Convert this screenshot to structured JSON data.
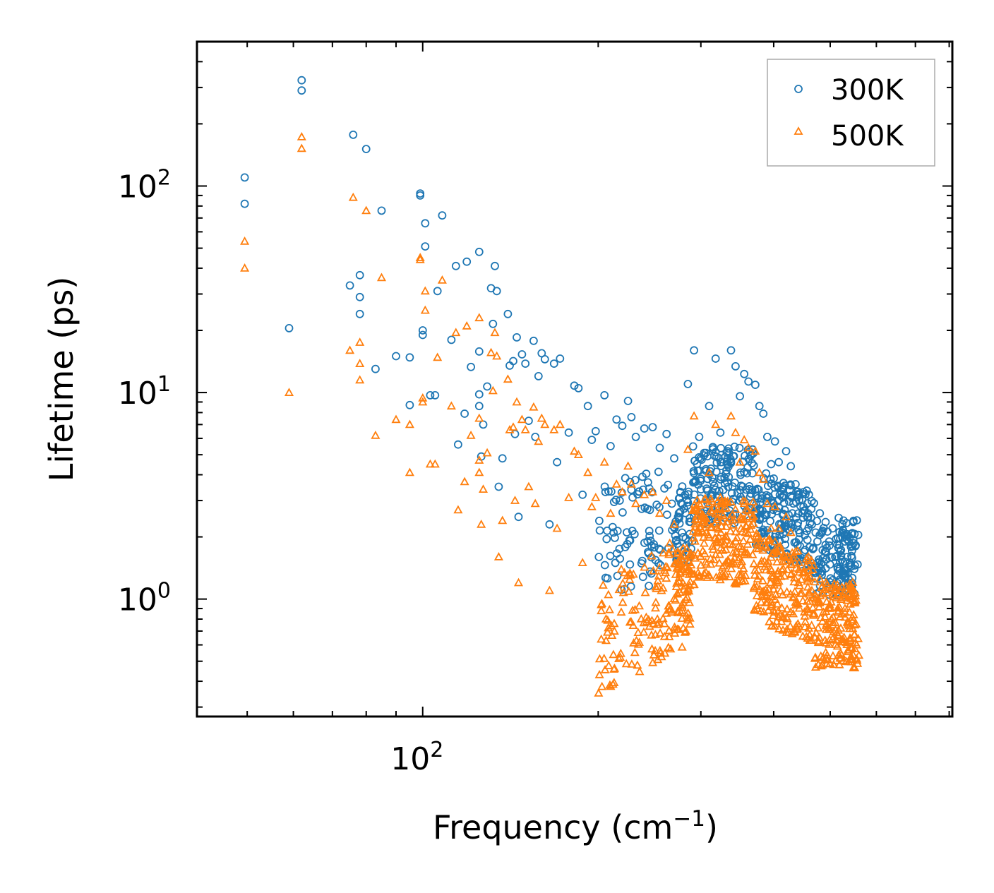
{
  "chart_data": {
    "type": "scatter",
    "title": "",
    "xlabel": "Frequency (cm",
    "xlabel_sup": "−1",
    "xlabel_suffix": ")",
    "ylabel": "Lifetime (ps)",
    "xscale": "log",
    "yscale": "log",
    "xlim": [
      41,
      810
    ],
    "ylim": [
      0.27,
      500
    ],
    "x_ticks": [
      {
        "value": 100,
        "base": "10",
        "exp": "2"
      }
    ],
    "y_ticks": [
      {
        "value": 1,
        "base": "10",
        "exp": "0"
      },
      {
        "value": 10,
        "base": "10",
        "exp": "1"
      },
      {
        "value": 100,
        "base": "10",
        "exp": "2"
      }
    ],
    "legend_position": "top-right",
    "series": [
      {
        "name": "300K",
        "marker": "circle",
        "color": "#1f77b4",
        "points": [
          [
            49.5,
            110
          ],
          [
            49.5,
            82
          ],
          [
            59,
            20.5
          ],
          [
            62,
            325
          ],
          [
            62,
            290
          ],
          [
            75,
            33
          ],
          [
            76,
            177
          ],
          [
            78,
            37
          ],
          [
            78,
            29
          ],
          [
            78,
            24
          ],
          [
            80,
            151
          ],
          [
            83,
            13
          ],
          [
            85,
            76
          ],
          [
            90,
            15
          ],
          [
            95,
            14.8
          ],
          [
            95,
            8.7
          ],
          [
            99,
            92
          ],
          [
            99,
            90
          ],
          [
            100,
            20
          ],
          [
            100,
            19
          ],
          [
            101,
            66
          ],
          [
            101,
            51
          ],
          [
            103,
            9.7
          ],
          [
            105,
            9.7
          ],
          [
            106,
            31
          ],
          [
            108,
            72
          ],
          [
            112,
            18
          ],
          [
            114,
            41
          ],
          [
            115,
            5.6
          ],
          [
            118,
            7.9
          ],
          [
            119,
            43
          ],
          [
            121,
            13.3
          ],
          [
            125,
            48
          ],
          [
            125,
            15.8
          ],
          [
            125,
            9.8
          ],
          [
            125,
            8.6
          ],
          [
            126,
            4.9
          ],
          [
            127,
            7
          ],
          [
            129,
            10.7
          ],
          [
            131,
            32
          ],
          [
            132,
            21.5
          ],
          [
            133,
            41
          ],
          [
            134,
            31
          ],
          [
            135,
            3.5
          ],
          [
            137,
            4.8
          ],
          [
            140,
            24
          ],
          [
            141,
            13.5
          ],
          [
            143,
            14.2
          ],
          [
            144,
            6.3
          ],
          [
            145,
            18.5
          ],
          [
            146,
            2.5
          ],
          [
            148,
            15.3
          ],
          [
            150,
            13.8
          ],
          [
            152,
            7.3
          ],
          [
            155,
            17.8
          ],
          [
            156,
            6.1
          ],
          [
            158,
            12
          ],
          [
            160,
            15.5
          ],
          [
            162,
            14.5
          ],
          [
            165,
            2.3
          ],
          [
            168,
            13.8
          ],
          [
            170,
            4.6
          ],
          [
            172,
            14.6
          ],
          [
            178,
            6.4
          ],
          [
            182,
            10.8
          ],
          [
            185,
            10.5
          ],
          [
            188,
            3.2
          ],
          [
            192,
            8.6
          ],
          [
            195,
            5.9
          ],
          [
            198,
            6.5
          ],
          [
            205,
            9.7
          ],
          [
            210,
            5.5
          ],
          [
            215,
            7.4
          ],
          [
            220,
            6.9
          ],
          [
            225,
            9.1
          ],
          [
            228,
            7.6
          ],
          [
            232,
            6.1
          ],
          [
            240,
            6.7
          ],
          [
            248,
            6.8
          ],
          [
            255,
            5.4
          ],
          [
            262,
            6.3
          ],
          [
            270,
            4.8
          ],
          [
            285,
            11
          ],
          [
            292,
            16
          ],
          [
            298,
            6.1
          ],
          [
            304,
            5.1
          ],
          [
            310,
            8.6
          ],
          [
            318,
            14.6
          ],
          [
            324,
            6.4
          ],
          [
            332,
            4.2
          ],
          [
            338,
            16
          ],
          [
            344,
            13.4
          ],
          [
            350,
            9.6
          ],
          [
            356,
            12.3
          ],
          [
            362,
            11.3
          ],
          [
            368,
            5.3
          ],
          [
            372,
            10.9
          ],
          [
            378,
            8.6
          ],
          [
            384,
            7.9
          ],
          [
            390,
            6.1
          ],
          [
            396,
            4.5
          ],
          [
            402,
            5.8
          ],
          [
            408,
            4.6
          ],
          [
            415,
            3.4
          ],
          [
            420,
            5.2
          ],
          [
            428,
            4.4
          ],
          [
            436,
            3.6
          ],
          [
            442,
            3.2
          ],
          [
            450,
            2.8
          ],
          [
            458,
            2.6
          ],
          [
            465,
            2.3
          ],
          [
            472,
            2.1
          ],
          [
            480,
            2.6
          ],
          [
            490,
            1.7
          ],
          [
            498,
            1.9
          ],
          [
            505,
            2.2
          ],
          [
            510,
            1.6
          ],
          [
            515,
            1.4
          ],
          [
            520,
            1.7
          ],
          [
            525,
            1.3
          ],
          [
            530,
            1.9
          ],
          [
            535,
            1.6
          ],
          [
            540,
            1.5
          ],
          [
            545,
            1.2
          ],
          [
            550,
            1.4
          ]
        ]
      },
      {
        "name": "500K",
        "marker": "triangle",
        "color": "#ff7f0e",
        "points": [
          [
            49.5,
            54
          ],
          [
            49.5,
            40
          ],
          [
            59,
            10
          ],
          [
            62,
            173
          ],
          [
            62,
            152
          ],
          [
            75,
            16
          ],
          [
            76,
            88
          ],
          [
            78,
            17.5
          ],
          [
            78,
            13.8
          ],
          [
            78,
            11.5
          ],
          [
            80,
            76
          ],
          [
            83,
            6.2
          ],
          [
            85,
            36
          ],
          [
            90,
            7.4
          ],
          [
            95,
            7
          ],
          [
            95,
            4.1
          ],
          [
            99,
            45
          ],
          [
            99,
            44
          ],
          [
            100,
            9.4
          ],
          [
            100,
            9
          ],
          [
            101,
            31
          ],
          [
            101,
            25
          ],
          [
            103,
            4.5
          ],
          [
            105,
            4.5
          ],
          [
            106,
            14.8
          ],
          [
            108,
            35
          ],
          [
            112,
            8.6
          ],
          [
            114,
            19.5
          ],
          [
            115,
            2.7
          ],
          [
            118,
            3.7
          ],
          [
            119,
            21
          ],
          [
            121,
            6.2
          ],
          [
            125,
            23
          ],
          [
            125,
            7.5
          ],
          [
            125,
            4.7
          ],
          [
            125,
            4.1
          ],
          [
            126,
            2.3
          ],
          [
            127,
            3.4
          ],
          [
            129,
            5.1
          ],
          [
            131,
            15.6
          ],
          [
            132,
            10.2
          ],
          [
            133,
            19.5
          ],
          [
            134,
            15
          ],
          [
            135,
            1.6
          ],
          [
            137,
            2.4
          ],
          [
            140,
            11.6
          ],
          [
            141,
            6.6
          ],
          [
            143,
            6.8
          ],
          [
            144,
            3
          ],
          [
            145,
            9
          ],
          [
            146,
            1.2
          ],
          [
            148,
            7.4
          ],
          [
            150,
            6.6
          ],
          [
            152,
            3.5
          ],
          [
            155,
            8.5
          ],
          [
            156,
            2.9
          ],
          [
            158,
            5.8
          ],
          [
            160,
            7.5
          ],
          [
            162,
            7
          ],
          [
            165,
            1.1
          ],
          [
            168,
            6.6
          ],
          [
            170,
            2.2
          ],
          [
            172,
            7
          ],
          [
            178,
            3.1
          ],
          [
            182,
            5.2
          ],
          [
            185,
            5
          ],
          [
            188,
            1.5
          ],
          [
            192,
            4.1
          ],
          [
            195,
            2.8
          ],
          [
            198,
            3.1
          ],
          [
            205,
            4.6
          ],
          [
            210,
            2.6
          ],
          [
            215,
            3.6
          ],
          [
            220,
            3.3
          ],
          [
            225,
            4.4
          ],
          [
            228,
            3.6
          ],
          [
            232,
            2.9
          ],
          [
            240,
            3.2
          ],
          [
            248,
            3.3
          ],
          [
            255,
            2.6
          ],
          [
            262,
            3
          ],
          [
            270,
            2.3
          ],
          [
            285,
            5.3
          ],
          [
            292,
            7.7
          ],
          [
            298,
            2.9
          ],
          [
            304,
            2.5
          ],
          [
            310,
            4.1
          ],
          [
            318,
            7
          ],
          [
            324,
            3.1
          ],
          [
            332,
            2
          ],
          [
            338,
            7.7
          ],
          [
            344,
            6.4
          ],
          [
            350,
            4.6
          ],
          [
            356,
            5.9
          ],
          [
            362,
            5.4
          ],
          [
            368,
            2.5
          ],
          [
            372,
            5.2
          ],
          [
            378,
            4.1
          ],
          [
            384,
            3.8
          ],
          [
            390,
            2.9
          ],
          [
            396,
            2.2
          ],
          [
            402,
            2.8
          ],
          [
            408,
            2.2
          ],
          [
            415,
            1.6
          ],
          [
            420,
            2.5
          ],
          [
            428,
            2.1
          ],
          [
            436,
            1.7
          ],
          [
            442,
            1.5
          ],
          [
            450,
            1.35
          ],
          [
            458,
            1.25
          ],
          [
            465,
            1.1
          ],
          [
            472,
            1
          ],
          [
            480,
            1.25
          ],
          [
            490,
            0.82
          ],
          [
            498,
            0.9
          ],
          [
            505,
            1.05
          ],
          [
            510,
            0.77
          ],
          [
            515,
            0.67
          ],
          [
            520,
            0.82
          ],
          [
            525,
            0.62
          ],
          [
            530,
            0.9
          ],
          [
            535,
            0.77
          ],
          [
            540,
            0.72
          ],
          [
            545,
            0.58
          ],
          [
            550,
            0.67
          ]
        ]
      }
    ]
  }
}
